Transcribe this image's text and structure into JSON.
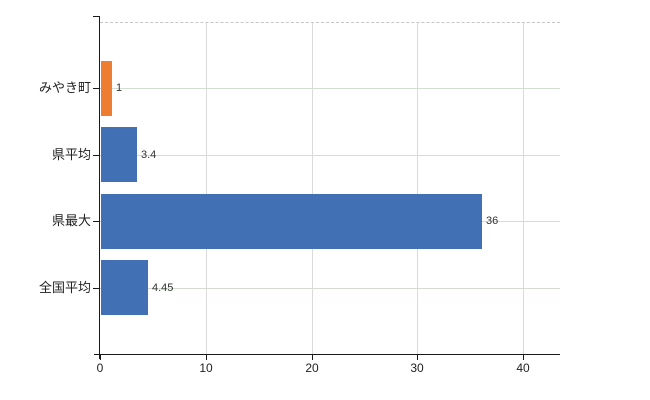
{
  "chart_data": {
    "type": "bar",
    "orientation": "horizontal",
    "title": "",
    "xlabel": "",
    "ylabel": "",
    "categories": [
      "みやき町",
      "県平均",
      "県最大",
      "全国平均"
    ],
    "values": [
      1,
      3.4,
      36,
      4.45
    ],
    "value_labels": [
      "1",
      "3.4",
      "36",
      "4.45"
    ],
    "bar_colors": [
      "#ED7D31",
      "#4170B4",
      "#4170B4",
      "#4170B4"
    ],
    "x_ticks": [
      0,
      10,
      20,
      30,
      40
    ],
    "x_tick_labels": [
      "0",
      "10",
      "20",
      "30",
      "40"
    ],
    "xlim": [
      0,
      43.5
    ],
    "grid": true,
    "legend": false
  },
  "colors": {
    "bar_blue": "#4170B4",
    "bar_orange": "#ED7D31",
    "gridline_vertical": "#DBDBDB",
    "gridline_horizontal": "#D4DCD4",
    "plot_top_border": "#C6C6C6",
    "axis": "#1A1A1A",
    "text": "#1F1F1F"
  }
}
